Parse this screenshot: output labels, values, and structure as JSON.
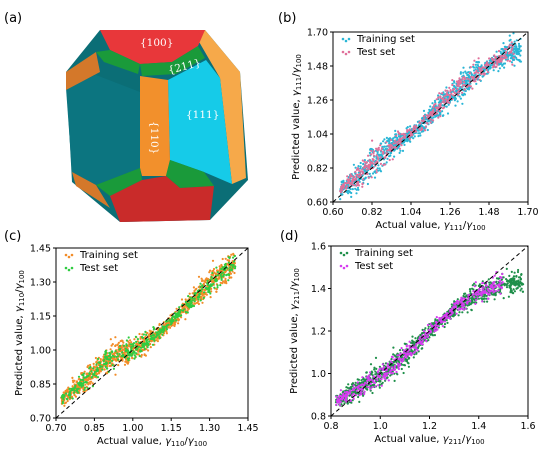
{
  "panel_a": {
    "label": "(a)",
    "facets": {
      "f100": "{100}",
      "f211": "{211}",
      "f110": "{110}",
      "f111": "{111}"
    },
    "colors": {
      "f100": "#e8373a",
      "f100_dark": "#c92b2a",
      "f111": "#16cbe8",
      "f111_dark": "#0d7a8a",
      "f110": "#f2902c",
      "f211": "#1a9a3a",
      "f211_edge": "#f6a94a"
    }
  },
  "chart_data": [
    {
      "panel": "(b)",
      "type": "scatter",
      "xlabel_prefix": "Actual value, ",
      "xlabel_math": "γ111/γ100",
      "ylabel_prefix": "Predicted value, ",
      "ylabel_math": "γ111/γ100",
      "xlim": [
        0.6,
        1.7
      ],
      "ylim": [
        0.6,
        1.7
      ],
      "xticks": [
        "0.60",
        "0.82",
        "1.04",
        "1.26",
        "1.48",
        "1.70"
      ],
      "yticks": [
        "0.60",
        "0.82",
        "1.04",
        "1.26",
        "1.48",
        "1.70"
      ],
      "grid": false,
      "legend_position": "top-left",
      "reference_line": "y = x (dashed)",
      "series": [
        {
          "name": "Training set",
          "color": "#29b6d6",
          "x_range": [
            0.64,
            1.66
          ],
          "scatter_spread": 0.06
        },
        {
          "name": "Test set",
          "color": "#e0709a",
          "x_range": [
            0.64,
            1.62
          ],
          "scatter_spread": 0.05
        }
      ],
      "trend": [
        [
          0.62,
          0.66
        ],
        [
          0.75,
          0.77
        ],
        [
          0.86,
          0.9
        ],
        [
          0.95,
          0.98
        ],
        [
          1.04,
          1.04
        ],
        [
          1.12,
          1.12
        ],
        [
          1.2,
          1.22
        ],
        [
          1.3,
          1.33
        ],
        [
          1.4,
          1.42
        ],
        [
          1.5,
          1.5
        ],
        [
          1.62,
          1.58
        ]
      ]
    },
    {
      "panel": "(c)",
      "type": "scatter",
      "xlabel_prefix": "Actual value, ",
      "xlabel_math": "γ110/γ100",
      "ylabel_prefix": "Predicted value, ",
      "ylabel_math": "γ110/γ100",
      "xlim": [
        0.7,
        1.45
      ],
      "ylim": [
        0.7,
        1.45
      ],
      "xticks": [
        "0.70",
        "0.85",
        "1.00",
        "1.15",
        "1.30",
        "1.45"
      ],
      "yticks": [
        "0.70",
        "0.85",
        "1.00",
        "1.15",
        "1.30",
        "1.45"
      ],
      "grid": false,
      "legend_position": "top-left",
      "reference_line": "y = x (dashed)",
      "series": [
        {
          "name": "Training set",
          "color": "#f28c28",
          "x_range": [
            0.72,
            1.4
          ],
          "scatter_spread": 0.035
        },
        {
          "name": "Test set",
          "color": "#2ecc40",
          "x_range": [
            0.72,
            1.4
          ],
          "scatter_spread": 0.03
        }
      ],
      "trend": [
        [
          0.72,
          0.78
        ],
        [
          0.8,
          0.85
        ],
        [
          0.88,
          0.94
        ],
        [
          0.95,
          0.99
        ],
        [
          1.02,
          1.01
        ],
        [
          1.1,
          1.07
        ],
        [
          1.18,
          1.16
        ],
        [
          1.26,
          1.25
        ],
        [
          1.33,
          1.32
        ],
        [
          1.4,
          1.38
        ]
      ]
    },
    {
      "panel": "(d)",
      "type": "scatter",
      "xlabel_prefix": "Actual value, ",
      "xlabel_math": "γ211/γ100",
      "ylabel_prefix": "Predicted value, ",
      "ylabel_math": "γ211/γ100",
      "xlim": [
        0.8,
        1.6
      ],
      "ylim": [
        0.8,
        1.6
      ],
      "xticks": [
        "0.8",
        "1.0",
        "1.2",
        "1.4",
        "1.6"
      ],
      "yticks": [
        "0.8",
        "1.0",
        "1.2",
        "1.4",
        "1.6"
      ],
      "grid": false,
      "legend_position": "top-left",
      "reference_line": "y = x (dashed)",
      "series": [
        {
          "name": "Training set",
          "color": "#1f8f4a",
          "x_range": [
            0.82,
            1.58
          ],
          "scatter_spread": 0.035
        },
        {
          "name": "Test set",
          "color": "#d63cf0",
          "x_range": [
            0.82,
            1.5
          ],
          "scatter_spread": 0.03
        }
      ],
      "trend": [
        [
          0.82,
          0.87
        ],
        [
          0.9,
          0.92
        ],
        [
          1.0,
          0.99
        ],
        [
          1.08,
          1.06
        ],
        [
          1.16,
          1.15
        ],
        [
          1.24,
          1.24
        ],
        [
          1.32,
          1.32
        ],
        [
          1.4,
          1.38
        ],
        [
          1.5,
          1.42
        ],
        [
          1.58,
          1.43
        ]
      ]
    }
  ]
}
